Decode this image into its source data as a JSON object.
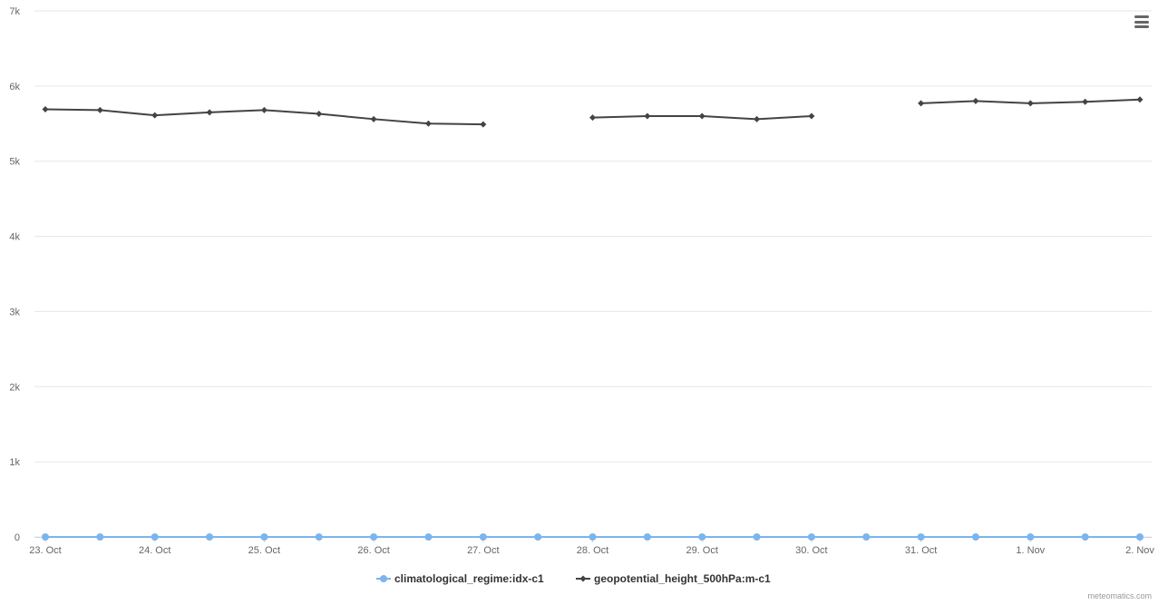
{
  "chart_data": {
    "type": "line",
    "title": "",
    "xlabel": "",
    "ylabel": "",
    "ylim": [
      0,
      7000
    ],
    "y_ticks": [
      "0",
      "1k",
      "2k",
      "3k",
      "4k",
      "5k",
      "6k",
      "7k"
    ],
    "y_tick_values": [
      0,
      1000,
      2000,
      3000,
      4000,
      5000,
      6000,
      7000
    ],
    "x_ticks": [
      "23. Oct",
      "24. Oct",
      "25. Oct",
      "26. Oct",
      "27. Oct",
      "28. Oct",
      "29. Oct",
      "30. Oct",
      "31. Oct",
      "1. Nov",
      "2. Nov"
    ],
    "x_tick_dates": [
      "2023-10-23",
      "2023-10-24",
      "2023-10-25",
      "2023-10-26",
      "2023-10-27",
      "2023-10-28",
      "2023-10-29",
      "2023-10-30",
      "2023-10-31",
      "2023-11-01",
      "2023-11-02"
    ],
    "grid": true,
    "legend_position": "bottom-center",
    "x": [
      "2023-10-23 00:00",
      "2023-10-23 12:00",
      "2023-10-24 00:00",
      "2023-10-24 12:00",
      "2023-10-25 00:00",
      "2023-10-25 12:00",
      "2023-10-26 00:00",
      "2023-10-26 12:00",
      "2023-10-27 00:00",
      "2023-10-27 12:00",
      "2023-10-28 00:00",
      "2023-10-28 12:00",
      "2023-10-29 00:00",
      "2023-10-29 12:00",
      "2023-10-30 00:00",
      "2023-10-30 12:00",
      "2023-10-31 00:00",
      "2023-10-31 12:00",
      "2023-11-01 00:00",
      "2023-11-01 12:00",
      "2023-11-02 00:00"
    ],
    "series": [
      {
        "name": "climatological_regime:idx-c1",
        "color": "#7cb5ec",
        "marker": "circle",
        "values": [
          0,
          0,
          0,
          0,
          0,
          0,
          0,
          0,
          0,
          0,
          0,
          0,
          0,
          0,
          0,
          0,
          0,
          0,
          0,
          0,
          0
        ]
      },
      {
        "name": "geopotential_height_500hPa:m-c1",
        "color": "#434348",
        "marker": "diamond",
        "values": [
          5690,
          5680,
          5610,
          5650,
          5680,
          5630,
          5560,
          5500,
          5490,
          null,
          5580,
          5600,
          5600,
          5560,
          5600,
          null,
          5770,
          5800,
          5770,
          5790,
          5820
        ]
      }
    ]
  },
  "credits": "meteomatics.com",
  "menu_icon": "hamburger-menu-icon"
}
